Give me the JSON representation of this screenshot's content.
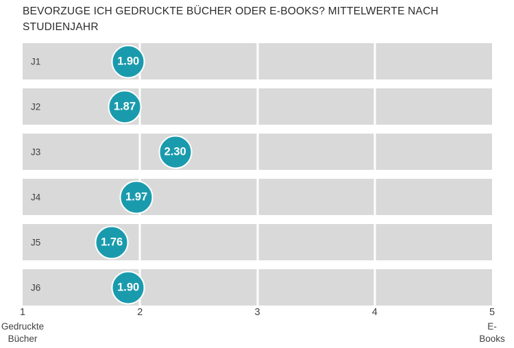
{
  "title": {
    "line1": "BEVORZUGE ICH GEDRUCKTE BÜCHER ODER E-BOOKS? MITTELWERTE NACH",
    "line2": "STUDIENJAHR"
  },
  "axis": {
    "left_label_line1": "Gedruckte",
    "left_label_line2": "Bücher",
    "right_label": "E-Books"
  },
  "colors": {
    "dot_fill": "#1a9bad",
    "band_fill": "#d9d9d9",
    "gridline": "#ffffff",
    "dot_text": "#ffffff",
    "text": "#404040"
  },
  "chart_data": {
    "type": "scatter",
    "subtype": "horizontal-dot-plot",
    "title": "BEVORZUGE ICH GEDRUCKTE BÜCHER ODER E-BOOKS? MITTELWERTE NACH STUDIENJAHR",
    "categories": [
      "J1",
      "J2",
      "J3",
      "J4",
      "J5",
      "J6"
    ],
    "values": [
      1.9,
      1.87,
      2.3,
      1.97,
      1.76,
      1.9
    ],
    "value_labels": [
      "1.90",
      "1.87",
      "2.30",
      "1.97",
      "1.76",
      "1.90"
    ],
    "xlim": [
      1,
      5
    ],
    "x_ticks": [
      "1",
      "2",
      "3",
      "4",
      "5"
    ],
    "gridlines_at": [
      2,
      3,
      4
    ],
    "xlabel_left": "Gedruckte Bücher",
    "xlabel_right": "E-Books",
    "legend_position": "none",
    "grid": "white vertical separators inside gray category bands"
  }
}
